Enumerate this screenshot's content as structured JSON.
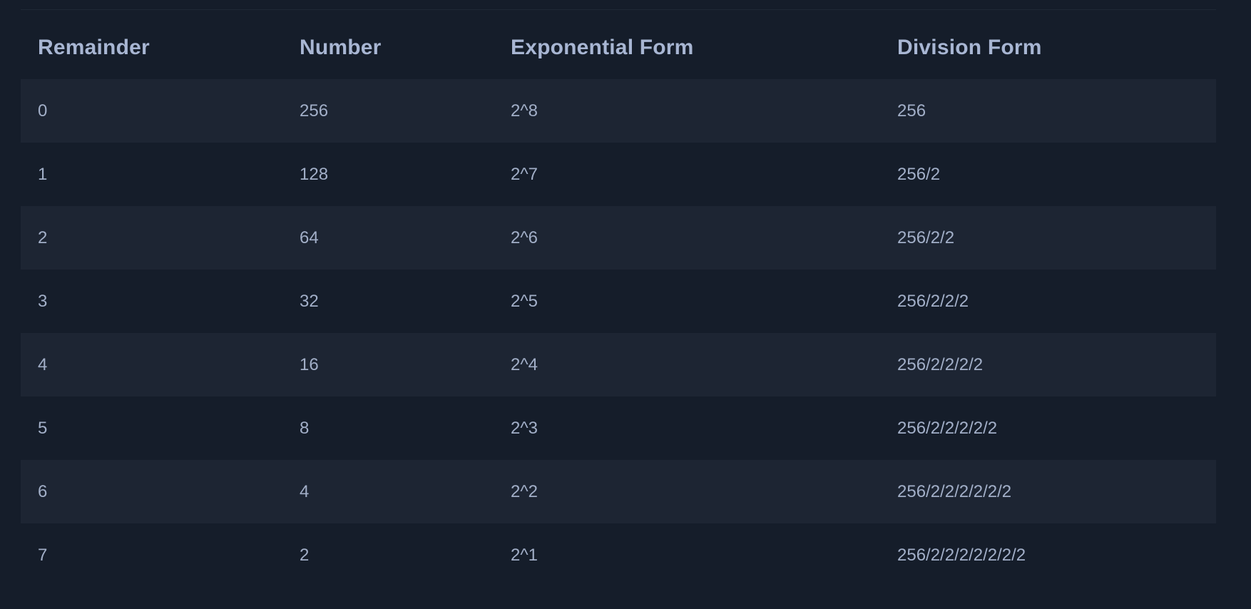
{
  "table": {
    "headers": [
      "Remainder",
      "Number",
      "Exponential Form",
      "Division Form"
    ],
    "rows": [
      [
        "0",
        "256",
        "2^8",
        "256"
      ],
      [
        "1",
        "128",
        "2^7",
        "256/2"
      ],
      [
        "2",
        "64",
        "2^6",
        "256/2/2"
      ],
      [
        "3",
        "32",
        "2^5",
        "256/2/2/2"
      ],
      [
        "4",
        "16",
        "2^4",
        "256/2/2/2/2"
      ],
      [
        "5",
        "8",
        "2^3",
        "256/2/2/2/2/2"
      ],
      [
        "6",
        "4",
        "2^2",
        "256/2/2/2/2/2/2"
      ],
      [
        "7",
        "2",
        "2^1",
        "256/2/2/2/2/2/2/2"
      ]
    ]
  },
  "colors": {
    "background": "#151d2a",
    "striped_row": "#1d2533",
    "header_text": "#a8b6d3",
    "body_text": "#a2afc8"
  }
}
